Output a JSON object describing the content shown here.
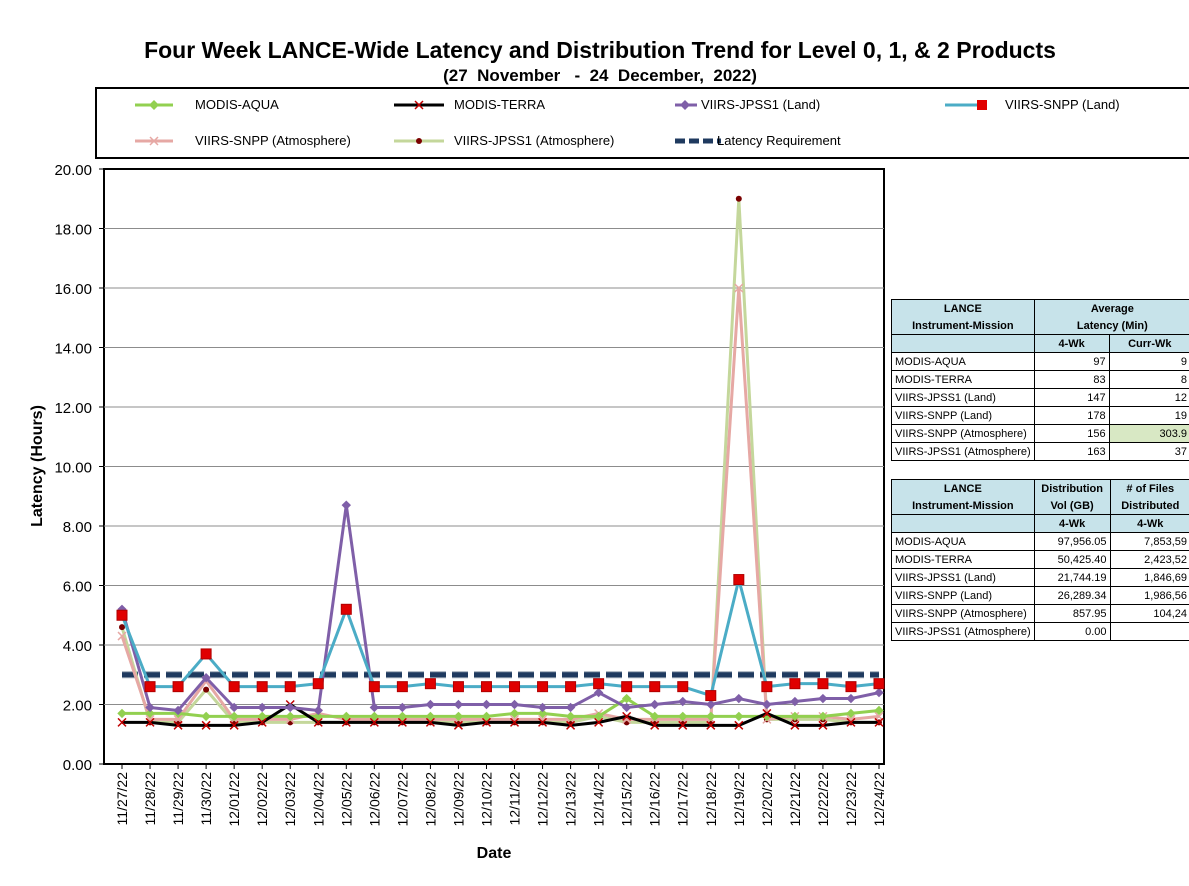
{
  "chart_data": {
    "type": "line",
    "title": "Four Week LANCE-Wide Latency and Distribution Trend for Level 0, 1, & 2 Products",
    "subtitle": "(27  November   -  24  December,  2022)",
    "xlabel": "Date",
    "ylabel": "Latency (Hours)",
    "ylim": [
      0,
      20
    ],
    "yticks": [
      "0.00",
      "2.00",
      "4.00",
      "6.00",
      "8.00",
      "10.00",
      "12.00",
      "14.00",
      "16.00",
      "18.00",
      "20.00"
    ],
    "grid": "horizontal",
    "legend_placement": "top",
    "categories": [
      "11/27/22",
      "11/28/22",
      "11/29/22",
      "11/30/22",
      "12/01/22",
      "12/02/22",
      "12/03/22",
      "12/04/22",
      "12/05/22",
      "12/06/22",
      "12/07/22",
      "12/08/22",
      "12/09/22",
      "12/10/22",
      "12/11/22",
      "12/12/22",
      "12/13/22",
      "12/14/22",
      "12/15/22",
      "12/16/22",
      "12/17/22",
      "12/18/22",
      "12/19/22",
      "12/20/22",
      "12/21/22",
      "12/22/22",
      "12/23/22",
      "12/24/22"
    ],
    "series": [
      {
        "name": "MODIS-AQUA",
        "color": "#92d050",
        "marker": "diamond",
        "values": [
          1.7,
          1.7,
          1.7,
          1.6,
          1.6,
          1.6,
          1.6,
          1.6,
          1.6,
          1.6,
          1.6,
          1.6,
          1.6,
          1.6,
          1.7,
          1.7,
          1.6,
          1.6,
          2.2,
          1.6,
          1.6,
          1.6,
          1.6,
          1.6,
          1.6,
          1.6,
          1.7,
          1.8
        ]
      },
      {
        "name": "MODIS-TERRA",
        "color": "#000000",
        "marker": "x",
        "values": [
          1.4,
          1.4,
          1.3,
          1.3,
          1.3,
          1.4,
          2.0,
          1.4,
          1.4,
          1.4,
          1.4,
          1.4,
          1.3,
          1.4,
          1.4,
          1.4,
          1.3,
          1.4,
          1.6,
          1.3,
          1.3,
          1.3,
          1.3,
          1.7,
          1.3,
          1.3,
          1.4,
          1.4
        ]
      },
      {
        "name": "VIIRS-JPSS1 (Land)",
        "color": "#7f5fa8",
        "marker": "diamond",
        "values": [
          5.2,
          1.9,
          1.8,
          2.9,
          1.9,
          1.9,
          1.9,
          1.8,
          8.7,
          1.9,
          1.9,
          2.0,
          2.0,
          2.0,
          2.0,
          1.9,
          1.9,
          2.4,
          1.9,
          2.0,
          2.1,
          2.0,
          2.2,
          2.0,
          2.1,
          2.2,
          2.2,
          2.4
        ]
      },
      {
        "name": "VIIRS-SNPP (Land)",
        "color": "#4bacc6",
        "marker": "square",
        "values": [
          5.0,
          2.6,
          2.6,
          3.7,
          2.6,
          2.6,
          2.6,
          2.7,
          5.2,
          2.6,
          2.6,
          2.7,
          2.6,
          2.6,
          2.6,
          2.6,
          2.6,
          2.7,
          2.6,
          2.6,
          2.6,
          2.3,
          6.2,
          2.6,
          2.7,
          2.7,
          2.6,
          2.7
        ]
      },
      {
        "name": "VIIRS-SNPP (Atmosphere)",
        "color": "#e6a8a4",
        "marker": "x",
        "values": [
          4.3,
          1.5,
          1.5,
          2.8,
          1.5,
          1.5,
          1.5,
          1.7,
          1.5,
          1.5,
          1.5,
          1.5,
          1.5,
          1.5,
          1.5,
          1.5,
          1.5,
          1.7,
          1.5,
          1.5,
          1.5,
          1.5,
          16.0,
          1.5,
          1.6,
          1.6,
          1.5,
          1.6
        ]
      },
      {
        "name": "VIIRS-JPSS1 (Atmosphere)",
        "color": "#c4d79b",
        "marker": "dot",
        "values": [
          4.6,
          1.4,
          1.4,
          2.5,
          1.4,
          1.4,
          1.4,
          1.4,
          1.4,
          1.4,
          1.4,
          1.4,
          1.4,
          1.4,
          1.4,
          1.4,
          1.4,
          1.6,
          1.4,
          1.4,
          1.4,
          1.4,
          19.0,
          1.5,
          1.5,
          1.5,
          1.4,
          1.4
        ]
      },
      {
        "name": "Latency Requirement",
        "color": "#1f3a5f",
        "marker": "dash",
        "values": [
          3,
          3,
          3,
          3,
          3,
          3,
          3,
          3,
          3,
          3,
          3,
          3,
          3,
          3,
          3,
          3,
          3,
          3,
          3,
          3,
          3,
          3,
          3,
          3,
          3,
          3,
          3,
          3
        ]
      }
    ]
  },
  "latency_table": {
    "header1": [
      "LANCE",
      "Average"
    ],
    "header1b": [
      "Instrument-Mission",
      "Latency (Min)"
    ],
    "header2": [
      "",
      "4-Wk",
      "Curr-Wk"
    ],
    "rows": [
      {
        "name": "MODIS-AQUA",
        "wk4": "97",
        "curr": "9"
      },
      {
        "name": "MODIS-TERRA",
        "wk4": "83",
        "curr": "8"
      },
      {
        "name": "VIIRS-JPSS1 (Land)",
        "wk4": "147",
        "curr": "12"
      },
      {
        "name": "VIIRS-SNPP (Land)",
        "wk4": "178",
        "curr": "19"
      },
      {
        "name": "VIIRS-SNPP (Atmosphere)",
        "wk4": "156",
        "curr": "303.9"
      },
      {
        "name": "VIIRS-JPSS1 (Atmosphere)",
        "wk4": "163",
        "curr": "37"
      }
    ]
  },
  "distribution_table": {
    "header1": [
      "LANCE",
      "Distribution",
      "# of Files"
    ],
    "header1b": [
      "Instrument-Mission",
      "Vol (GB)",
      "Distributed"
    ],
    "header2": [
      "",
      "4-Wk",
      "4-Wk"
    ],
    "rows": [
      {
        "name": "MODIS-AQUA",
        "vol": "97,956.05",
        "files": "7,853,59"
      },
      {
        "name": "MODIS-TERRA",
        "vol": "50,425.40",
        "files": "2,423,52"
      },
      {
        "name": "VIIRS-JPSS1 (Land)",
        "vol": "21,744.19",
        "files": "1,846,69"
      },
      {
        "name": "VIIRS-SNPP (Land)",
        "vol": "26,289.34",
        "files": "1,986,56"
      },
      {
        "name": "VIIRS-SNPP (Atmosphere)",
        "vol": "857.95",
        "files": "104,24"
      },
      {
        "name": "VIIRS-JPSS1 (Atmosphere)",
        "vol": "0.00",
        "files": ""
      }
    ]
  }
}
